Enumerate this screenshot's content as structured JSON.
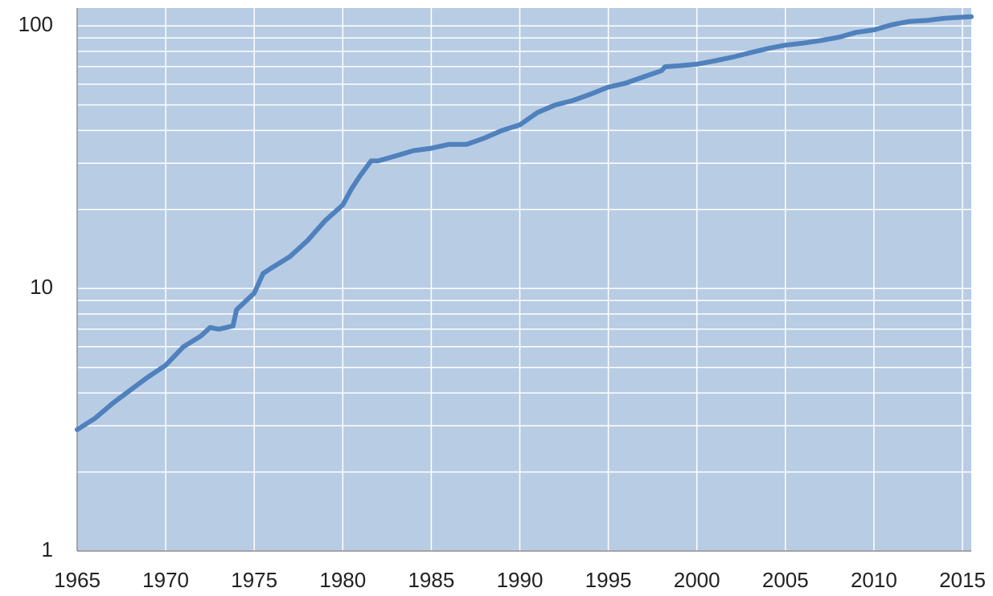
{
  "chart_data": {
    "type": "line",
    "x": [
      1965,
      1966,
      1967,
      1968,
      1969,
      1970,
      1971,
      1972,
      1972.5,
      1973,
      1973.8,
      1974,
      1975,
      1975.5,
      1976,
      1977,
      1978,
      1979,
      1980,
      1980.5,
      1981,
      1981.6,
      1982,
      1983,
      1984,
      1985,
      1986,
      1987,
      1988,
      1989,
      1990,
      1991,
      1992,
      1993,
      1994,
      1995,
      1996,
      1997,
      1998,
      1998.2,
      1999,
      2000,
      2001,
      2002,
      2003,
      2004,
      2005,
      2006,
      2007,
      2008,
      2009,
      2010,
      2011,
      2012,
      2013,
      2014,
      2015,
      2015.5
    ],
    "series": [
      {
        "color": "#4f81bd",
        "values": [
          2.9,
          3.2,
          3.65,
          4.1,
          4.6,
          5.1,
          6.0,
          6.6,
          7.1,
          7.0,
          7.2,
          8.3,
          9.6,
          11.4,
          12.0,
          13.2,
          15.2,
          18.1,
          20.8,
          24,
          27,
          30.6,
          30.6,
          32,
          33.5,
          34.2,
          35.4,
          35.4,
          37.4,
          40,
          42,
          46.8,
          50,
          52,
          55,
          58.5,
          60.6,
          64,
          67.5,
          69.9,
          70.5,
          71.5,
          73.6,
          76,
          79,
          82,
          84.5,
          86,
          88,
          90.5,
          94.5,
          96.6,
          101,
          104,
          105,
          107,
          108,
          108.5
        ]
      }
    ],
    "xlim": [
      1965,
      2015.5
    ],
    "xticks": [
      1965,
      1970,
      1975,
      1980,
      1985,
      1990,
      1995,
      2000,
      2005,
      2010,
      2015
    ],
    "ylim": [
      1,
      117
    ],
    "yticks": [
      1,
      10,
      100
    ],
    "yminorticks": [
      2,
      3,
      4,
      5,
      6,
      7,
      8,
      9,
      20,
      30,
      40,
      50,
      60,
      70,
      80,
      90
    ],
    "ylog": true,
    "grid": true,
    "background": "#b8cce4"
  }
}
